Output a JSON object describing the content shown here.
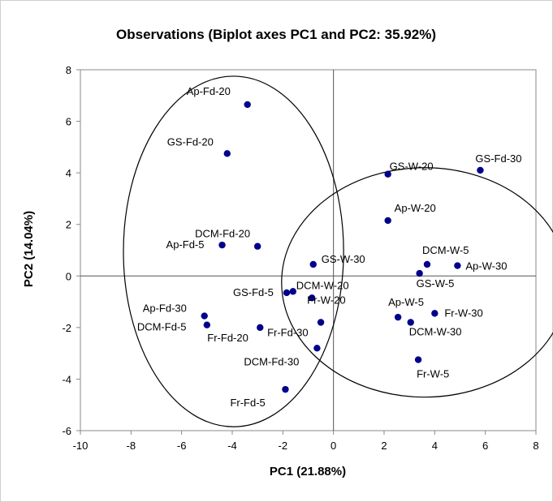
{
  "chart_data": {
    "type": "scatter",
    "title": "Observations (Biplot axes PC1 and PC2: 35.92%)",
    "xlabel": "PC1 (21.88%)",
    "ylabel": "PC2 (14.04%)",
    "xlim": [
      -10,
      8
    ],
    "ylim": [
      -6,
      8
    ],
    "x_ticks": [
      -10,
      -8,
      -6,
      -4,
      -2,
      0,
      2,
      4,
      6,
      8
    ],
    "y_ticks": [
      -6,
      -4,
      -2,
      0,
      2,
      4,
      6,
      8
    ],
    "grid": false,
    "marker_color": "#00008B",
    "points": [
      {
        "label": "Ap-Fd-20",
        "x": -3.4,
        "y": 6.65
      },
      {
        "label": "GS-Fd-20",
        "x": -4.2,
        "y": 4.75
      },
      {
        "label": "DCM-Fd-20",
        "x": -3.0,
        "y": 1.15
      },
      {
        "label": "Ap-Fd-5",
        "x": -4.4,
        "y": 1.2
      },
      {
        "label": "GS-W-30",
        "x": -0.8,
        "y": 0.45
      },
      {
        "label": "DCM-W-20",
        "x": -1.6,
        "y": -0.6
      },
      {
        "label": "GS-Fd-5",
        "x": -1.85,
        "y": -0.65
      },
      {
        "label": "Fr-W-20",
        "x": -0.85,
        "y": -0.85
      },
      {
        "label": "Ap-Fd-30",
        "x": -5.1,
        "y": -1.55
      },
      {
        "label": "DCM-Fd-5",
        "x": -5.0,
        "y": -1.9
      },
      {
        "label": "Fr-Fd-20",
        "x": -2.9,
        "y": -2.0
      },
      {
        "label": "Fr-Fd-30",
        "x": -0.5,
        "y": -1.8
      },
      {
        "label": "DCM-Fd-30",
        "x": -0.65,
        "y": -2.8
      },
      {
        "label": "Fr-Fd-5",
        "x": -1.9,
        "y": -4.4
      },
      {
        "label": "GS-W-20",
        "x": 2.15,
        "y": 3.95
      },
      {
        "label": "GS-Fd-30",
        "x": 5.8,
        "y": 4.1
      },
      {
        "label": "Ap-W-20",
        "x": 2.15,
        "y": 2.15
      },
      {
        "label": "DCM-W-5",
        "x": 3.7,
        "y": 0.45
      },
      {
        "label": "Ap-W-30",
        "x": 4.9,
        "y": 0.4
      },
      {
        "label": "GS-W-5",
        "x": 3.4,
        "y": 0.1
      },
      {
        "label": "Ap-W-5",
        "x": 2.55,
        "y": -1.6
      },
      {
        "label": "Fr-W-30",
        "x": 4.0,
        "y": -1.45
      },
      {
        "label": "DCM-W-30",
        "x": 3.05,
        "y": -1.8
      },
      {
        "label": "Fr-W-5",
        "x": 3.35,
        "y": -3.25
      }
    ],
    "ellipses": [
      {
        "cx": -3.95,
        "cy": 0.95,
        "rx": 4.35,
        "ry": 6.8
      },
      {
        "cx": 3.6,
        "cy": -0.25,
        "rx": 5.65,
        "ry": 4.45
      }
    ]
  }
}
